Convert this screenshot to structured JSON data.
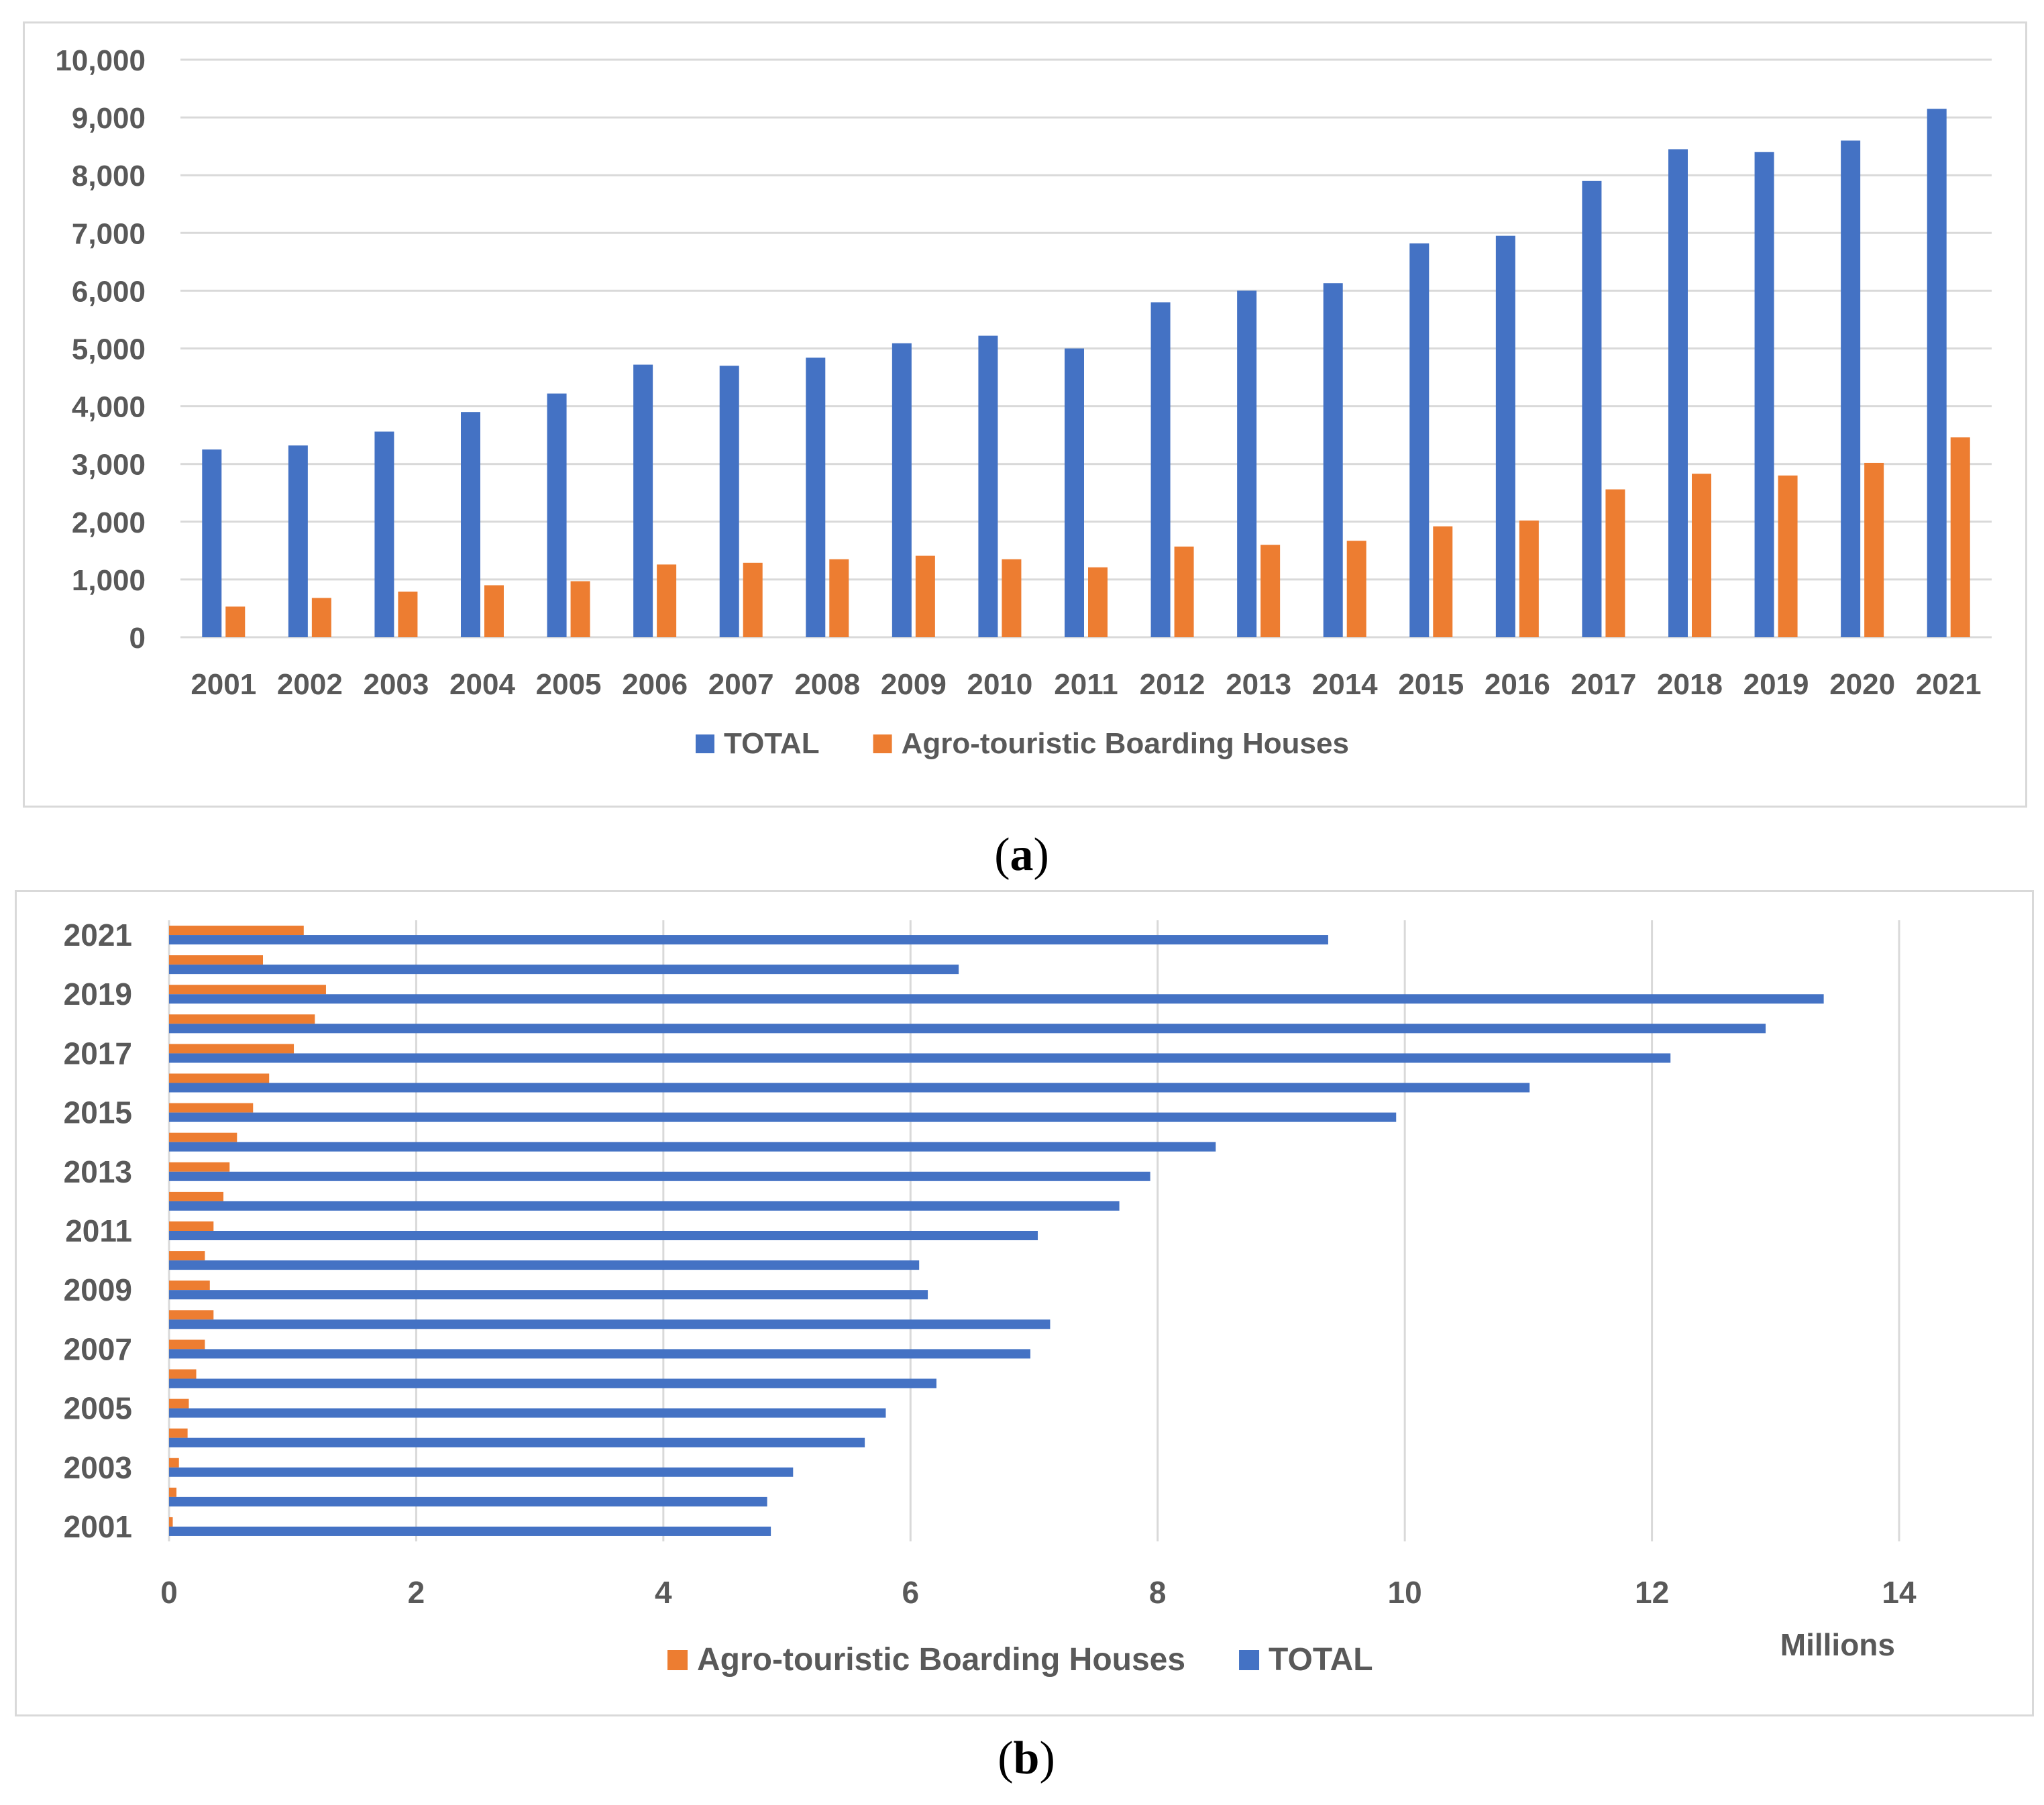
{
  "captions": {
    "a": "a",
    "b": "b"
  },
  "colors": {
    "total": "#4472C4",
    "agro": "#ED7D31",
    "grid": "#d9d9d9",
    "text": "#595959"
  },
  "chart_data": [
    {
      "id": "a",
      "type": "bar",
      "title": "",
      "xlabel": "",
      "ylabel": "",
      "ylim": [
        0,
        10000
      ],
      "yticks": [
        "0",
        "1,000",
        "2,000",
        "3,000",
        "4,000",
        "5,000",
        "6,000",
        "7,000",
        "8,000",
        "9,000",
        "10,000"
      ],
      "grid": true,
      "legend_position": "bottom",
      "categories": [
        "2001",
        "2002",
        "2003",
        "2004",
        "2005",
        "2006",
        "2007",
        "2008",
        "2009",
        "2010",
        "2011",
        "2012",
        "2013",
        "2014",
        "2015",
        "2016",
        "2017",
        "2018",
        "2019",
        "2020",
        "2021"
      ],
      "series": [
        {
          "name": "TOTAL",
          "color": "#4472C4",
          "values": [
            3250,
            3320,
            3560,
            3900,
            4220,
            4720,
            4700,
            4840,
            5090,
            5220,
            5000,
            5800,
            6000,
            6130,
            6820,
            6950,
            7900,
            8450,
            8400,
            8600,
            9150
          ]
        },
        {
          "name": "Agro-touristic Boarding Houses",
          "color": "#ED7D31",
          "values": [
            530,
            680,
            790,
            900,
            970,
            1260,
            1290,
            1350,
            1410,
            1350,
            1210,
            1570,
            1600,
            1670,
            1920,
            2020,
            2560,
            2830,
            2800,
            3020,
            3460
          ]
        }
      ]
    },
    {
      "id": "b",
      "type": "bar",
      "orientation": "horizontal",
      "title": "",
      "xlabel": "Millions",
      "ylabel": "",
      "xlim": [
        0,
        14
      ],
      "xticks": [
        "0",
        "2",
        "4",
        "6",
        "8",
        "10",
        "12",
        "14"
      ],
      "grid": true,
      "legend_position": "bottom",
      "categories": [
        "2001",
        "2002",
        "2003",
        "2004",
        "2005",
        "2006",
        "2007",
        "2008",
        "2009",
        "2010",
        "2011",
        "2012",
        "2013",
        "2014",
        "2015",
        "2016",
        "2017",
        "2018",
        "2019",
        "2020",
        "2021"
      ],
      "category_labels": [
        "2001",
        "",
        "2003",
        "",
        "2005",
        "",
        "2007",
        "",
        "2009",
        "",
        "2011",
        "",
        "2013",
        "",
        "2015",
        "",
        "2017",
        "",
        "2019",
        "",
        "2021"
      ],
      "series": [
        {
          "name": "Agro-touristic Boarding Houses",
          "color": "#ED7D31",
          "values": [
            0.03,
            0.06,
            0.08,
            0.15,
            0.16,
            0.22,
            0.29,
            0.36,
            0.33,
            0.29,
            0.36,
            0.44,
            0.49,
            0.55,
            0.68,
            0.81,
            1.01,
            1.18,
            1.27,
            0.76,
            1.09
          ]
        },
        {
          "name": "TOTAL",
          "color": "#4472C4",
          "values": [
            4.87,
            4.84,
            5.05,
            5.63,
            5.8,
            6.21,
            6.97,
            7.13,
            6.14,
            6.07,
            7.03,
            7.69,
            7.94,
            8.47,
            9.93,
            11.01,
            12.15,
            12.92,
            13.39,
            6.39,
            9.38
          ]
        }
      ]
    }
  ]
}
